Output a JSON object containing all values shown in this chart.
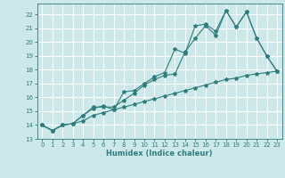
{
  "xlabel": "Humidex (Indice chaleur)",
  "bg_color": "#cce8e8",
  "grid_color": "#ffffff",
  "line_color": "#2e7d7d",
  "xlim": [
    -0.5,
    23.5
  ],
  "ylim": [
    13.0,
    22.8
  ],
  "xticks": [
    0,
    1,
    2,
    3,
    4,
    5,
    6,
    7,
    8,
    9,
    10,
    11,
    12,
    13,
    14,
    15,
    16,
    17,
    18,
    19,
    20,
    21,
    22,
    23
  ],
  "yticks": [
    13,
    14,
    15,
    16,
    17,
    18,
    19,
    20,
    21,
    22
  ],
  "line1_x": [
    0,
    1,
    2,
    3,
    4,
    5,
    6,
    7,
    8,
    9,
    10,
    11,
    12,
    13,
    14,
    15,
    16,
    17,
    18,
    19,
    20,
    21,
    22,
    23
  ],
  "line1_y": [
    14.0,
    13.6,
    14.0,
    14.1,
    14.7,
    15.3,
    15.3,
    15.3,
    15.8,
    16.3,
    16.9,
    17.3,
    17.6,
    17.7,
    19.3,
    20.3,
    21.2,
    20.5,
    22.3,
    21.1,
    22.2,
    20.3,
    19.0,
    17.9
  ],
  "line2_x": [
    0,
    1,
    2,
    3,
    4,
    5,
    6,
    7,
    8,
    9,
    10,
    11,
    12,
    13,
    14,
    15,
    16,
    17,
    18,
    19,
    20,
    21,
    22,
    23
  ],
  "line2_y": [
    14.0,
    13.6,
    14.0,
    14.1,
    14.7,
    15.2,
    15.4,
    15.1,
    16.4,
    16.5,
    17.0,
    17.5,
    17.8,
    19.5,
    19.2,
    21.2,
    21.3,
    20.8,
    22.3,
    21.1,
    22.2,
    20.3,
    19.0,
    17.9
  ],
  "line3_x": [
    0,
    1,
    2,
    3,
    4,
    5,
    6,
    7,
    8,
    9,
    10,
    11,
    12,
    13,
    14,
    15,
    16,
    17,
    18,
    19,
    20,
    21,
    22,
    23
  ],
  "line3_y": [
    14.0,
    13.6,
    14.0,
    14.1,
    14.3,
    14.7,
    14.9,
    15.1,
    15.3,
    15.5,
    15.7,
    15.9,
    16.1,
    16.3,
    16.5,
    16.7,
    16.9,
    17.1,
    17.3,
    17.4,
    17.6,
    17.7,
    17.8,
    17.9
  ]
}
